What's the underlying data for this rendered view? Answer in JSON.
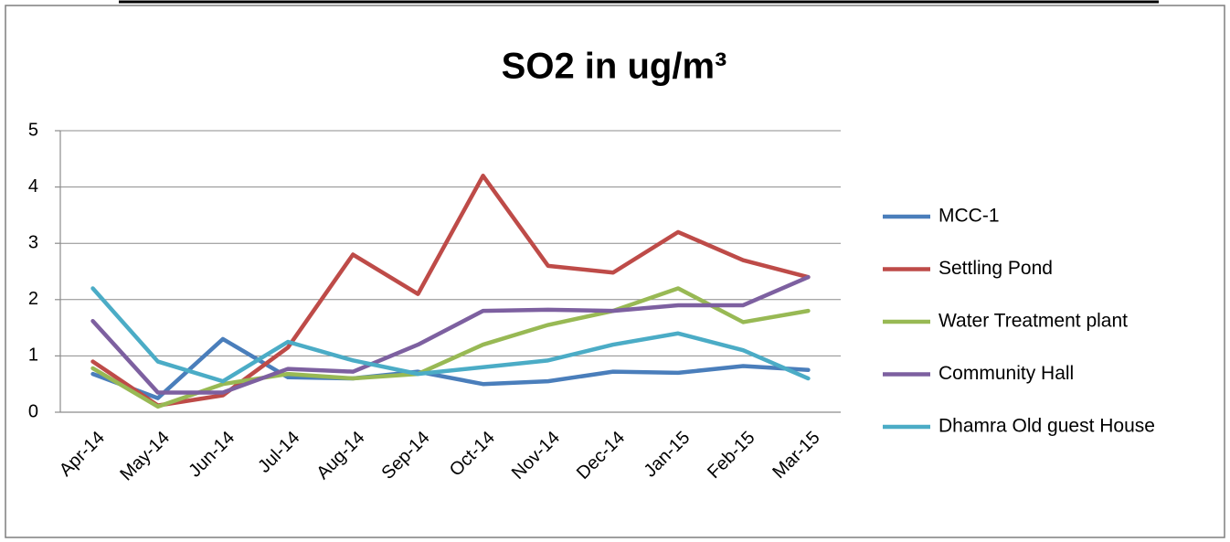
{
  "chart_data": {
    "type": "line",
    "title": "SO2 in ug/m³",
    "categories": [
      "Apr-14",
      "May-14",
      "Jun-14",
      "Jul-14",
      "Aug-14",
      "Sep-14",
      "Oct-14",
      "Nov-14",
      "Dec-14",
      "Jan-15",
      "Feb-15",
      "Mar-15"
    ],
    "series": [
      {
        "name": "MCC-1",
        "color": "#4a7ebb",
        "values": [
          0.68,
          0.25,
          1.3,
          0.62,
          0.6,
          0.72,
          0.5,
          0.55,
          0.72,
          0.7,
          0.82,
          0.75
        ]
      },
      {
        "name": "Settling Pond",
        "color": "#be4b48",
        "values": [
          0.9,
          0.12,
          0.3,
          1.15,
          2.8,
          2.1,
          4.2,
          2.6,
          2.48,
          3.2,
          2.7,
          2.4
        ]
      },
      {
        "name": "Water Treatment plant",
        "color": "#98b954",
        "values": [
          0.78,
          0.1,
          0.5,
          0.68,
          0.6,
          0.68,
          1.2,
          1.55,
          1.8,
          2.2,
          1.6,
          1.8
        ]
      },
      {
        "name": "Community Hall",
        "color": "#7d60a0",
        "values": [
          1.62,
          0.35,
          0.35,
          0.77,
          0.72,
          1.2,
          1.8,
          1.82,
          1.8,
          1.9,
          1.9,
          2.4
        ]
      },
      {
        "name": "Dhamra Old guest House",
        "color": "#4bacc6",
        "values": [
          2.2,
          0.9,
          0.55,
          1.25,
          0.92,
          0.68,
          0.8,
          0.92,
          1.2,
          1.4,
          1.1,
          0.6
        ]
      }
    ],
    "ylim": [
      0,
      5
    ],
    "yticks": [
      0,
      1,
      2,
      3,
      4,
      5
    ],
    "grid": true,
    "legend": "right"
  }
}
